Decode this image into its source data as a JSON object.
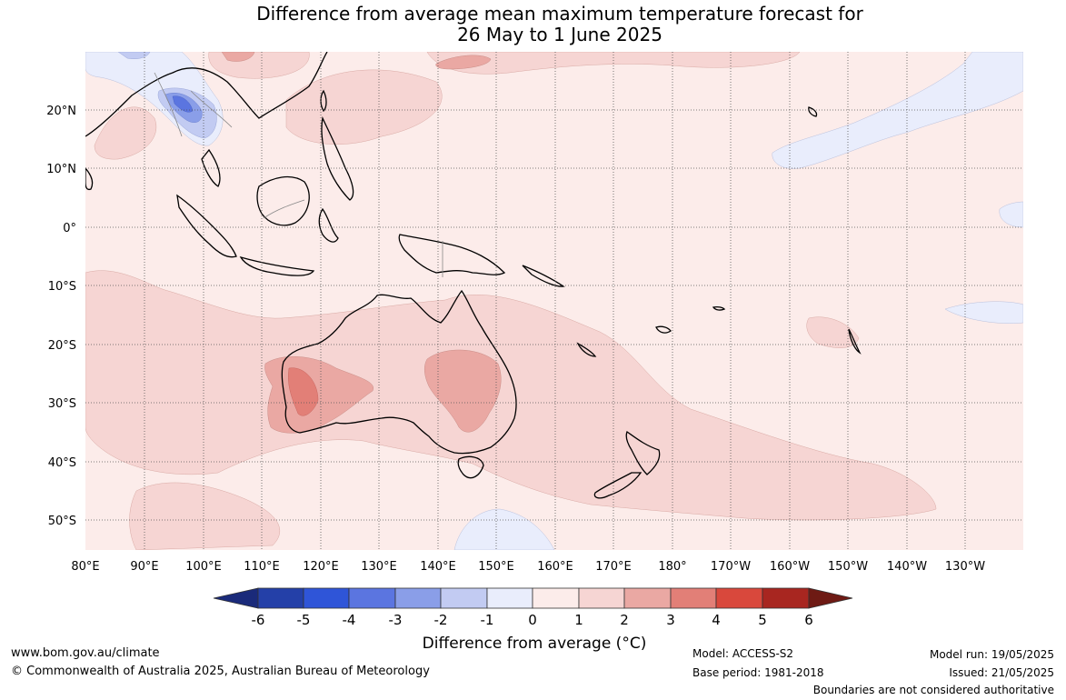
{
  "title": {
    "line1": "Difference from average mean maximum temperature forecast for",
    "line2": "26 May to 1 June 2025"
  },
  "map": {
    "lon_labels": [
      "80°E",
      "90°E",
      "100°E",
      "110°E",
      "120°E",
      "130°E",
      "140°E",
      "150°E",
      "160°E",
      "170°E",
      "180°",
      "170°W",
      "160°W",
      "150°W",
      "140°W",
      "130°W"
    ],
    "lat_labels": [
      "20°N",
      "10°N",
      "0°",
      "10°S",
      "20°S",
      "30°S",
      "40°S",
      "50°S"
    ],
    "grid_lines": "dotted"
  },
  "colorbar": {
    "ticks": [
      "-6",
      "-5",
      "-4",
      "-3",
      "-2",
      "-1",
      "0",
      "1",
      "2",
      "3",
      "4",
      "5",
      "6"
    ],
    "colors": [
      "#1a2a7a",
      "#2440a8",
      "#2f55d8",
      "#5b75e0",
      "#8a9ee8",
      "#c2cbf2",
      "#e9edfc",
      "#fcecea",
      "#f6d5d3",
      "#eaa8a3",
      "#e27f77",
      "#d9483c",
      "#a82620",
      "#6e1a14"
    ],
    "title": "Difference from average (",
    "unit": "°C",
    "title_close": ")"
  },
  "footer": {
    "website": "www.bom.gov.au/climate",
    "copyright": "© Commonwealth of Australia 2025, Australian Bureau of Meteorology",
    "model": "Model: ACCESS-S2",
    "base_period": "Base period: 1981-2018",
    "model_run": "Model run: 19/05/2025",
    "issued": "Issued: 21/05/2025",
    "disclaimer": "Boundaries are not considered authoritative"
  }
}
